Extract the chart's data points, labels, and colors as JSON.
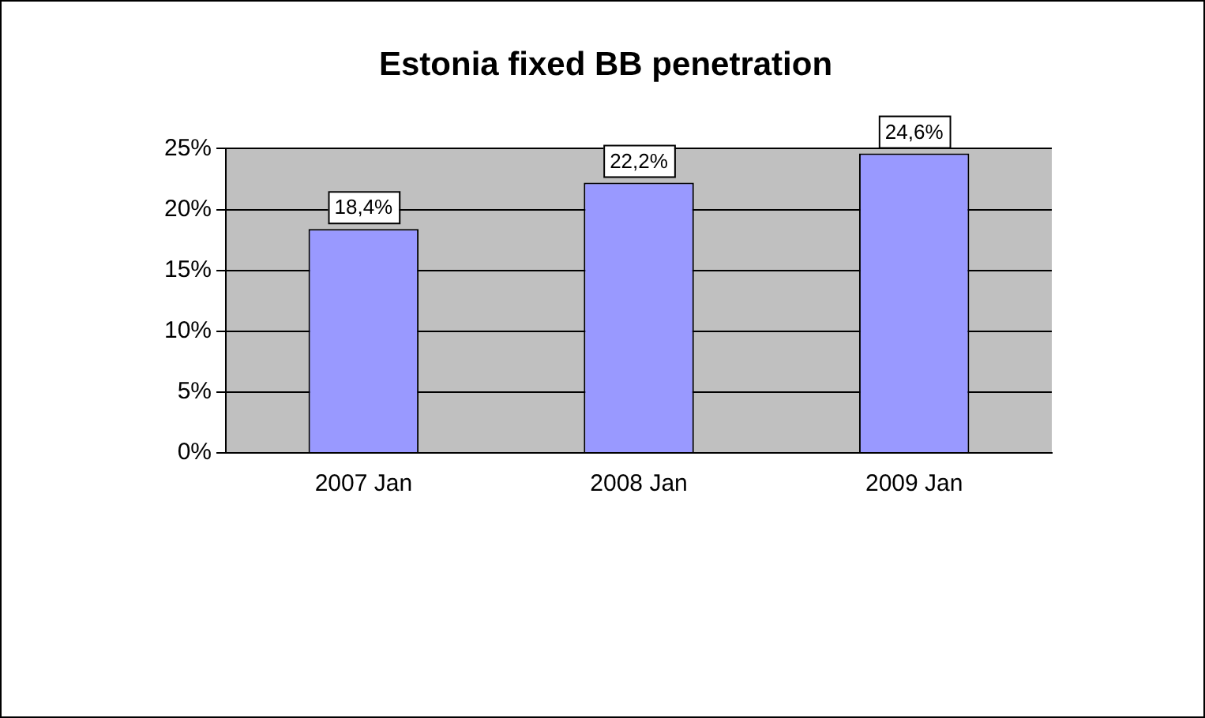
{
  "chart_data": {
    "type": "bar",
    "title": "Estonia fixed BB penetration",
    "categories": [
      "2007 Jan",
      "2008 Jan",
      "2009 Jan"
    ],
    "values": [
      18.4,
      22.2,
      24.6
    ],
    "value_labels": [
      "18,4%",
      "22,2%",
      "24,6%"
    ],
    "color": "#9999ff",
    "ylim": [
      0,
      25
    ],
    "yticks": [
      {
        "value": 0,
        "label": "0%"
      },
      {
        "value": 5,
        "label": "5%"
      },
      {
        "value": 10,
        "label": "10%"
      },
      {
        "value": 15,
        "label": "15%"
      },
      {
        "value": 20,
        "label": "20%"
      },
      {
        "value": 25,
        "label": "25%"
      }
    ],
    "grid": "y",
    "legend": false
  }
}
